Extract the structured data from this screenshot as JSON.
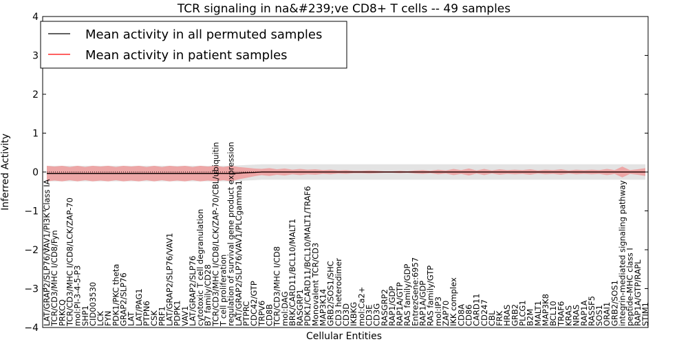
{
  "chart_data": {
    "type": "line",
    "title": "TCR signaling in na&#239;ve CD8+ T cells -- 49 samples",
    "xlabel": "Cellular Entities",
    "ylabel": "Inferred Activity",
    "ylim": [
      -4,
      4
    ],
    "yticks": [
      "4",
      "3",
      "2",
      "1",
      "0",
      "−1",
      "−2",
      "−3",
      "−4"
    ],
    "legend_position": "top-left",
    "categories": [
      "LAT/GRAP2/SLP76/VAV1/PI3K Class IA",
      "TCR/CD3/MHC I/CD8/Fyn",
      "PRKCQ",
      "TCR/CD3/MHC I/CD8/LCK/ZAP-70",
      "mol:PI-3-4-5-P3",
      "SHP1",
      "CID003530",
      "LCK",
      "FYN",
      "PDK1/PKC theta",
      "GRAP2/SLP76",
      "LAT",
      "LAT/PAG1",
      "PTPN6",
      "CSK",
      "PRF1",
      "LAT/GRAP2/SLP76/VAV1",
      "PDPK1",
      "VAV1",
      "LAT/GRAP2/SLP76",
      "cytotoxic T cell degranulation",
      "B7 family/CD28",
      "TCR/CD3/MHC I/CD8/LCK/ZAP-70/CBL/ubiquitin",
      "T cell proliferation",
      "regulation of survival gene product expression",
      "LAT/GRAP2/SLP76/VAV1/PLCgamma1",
      "PTPRC",
      "CDC42/GTP",
      "TRPV6",
      "CD8B",
      "TCR/CD3/MHC I/CD8",
      "mol:DAG",
      "BRK/CARD11/BCL10/MALT1",
      "RASGRP1",
      "PDK1/CARD11/BCL10/MALT1/TRAF6",
      "Monovalent TCR/CD3",
      "MAP3K14",
      "GRB2/SOS1/SHC",
      "CD3 heterodimer",
      "CD3D",
      "IKBKG",
      "mol:Ca2+",
      "CD3E",
      "CD3G",
      "RASGRP2",
      "RAP1/GDP",
      "RAP1A/GTP",
      "RAS family/GDP",
      "EntrezGene:6957",
      "RAP1A/GDP",
      "RAS family/GTP",
      "mol:IP3",
      "ZAP70",
      "IKK complex",
      "CD8A",
      "CD86",
      "CARD11",
      "CD247",
      "CBL",
      "FRK",
      "HRAS",
      "GRB2",
      "PLCG1",
      "B2M",
      "MALT1",
      "MAP3K8",
      "BCL10",
      "TRAF6",
      "KRAS",
      "NRAS",
      "RAP1A",
      "RASSF5",
      "SOS1",
      "ORAI1",
      "GRB2/SOS1",
      "integrin-mediated signaling pathway",
      "peptide-MHC class I",
      "RAP1A/GTP/RAPL",
      "STIM1"
    ],
    "series": [
      {
        "name": "Mean activity in all permuted samples",
        "color": "#000000",
        "values": [
          -0.04,
          -0.04,
          -0.04,
          -0.04,
          -0.04,
          -0.04,
          -0.04,
          -0.04,
          -0.04,
          -0.04,
          -0.04,
          -0.04,
          -0.04,
          -0.04,
          -0.04,
          -0.04,
          -0.04,
          -0.04,
          -0.04,
          -0.04,
          -0.04,
          -0.04,
          -0.04,
          -0.04,
          -0.04,
          -0.03,
          -0.02,
          -0.01,
          0.0,
          0.0,
          0.0,
          0.0,
          0.0,
          0.0,
          0.0,
          0.0,
          0.0,
          0.0,
          0.0,
          0.0,
          0.0,
          0.0,
          0.0,
          0.0,
          0.0,
          0.0,
          0.0,
          0.0,
          0.0,
          0.0,
          0.0,
          0.0,
          0.0,
          0.0,
          0.0,
          0.0,
          0.0,
          0.0,
          0.0,
          0.0,
          0.0,
          0.0,
          0.0,
          0.0,
          0.0,
          0.0,
          0.0,
          0.0,
          0.0,
          0.0,
          0.0,
          0.0,
          0.0,
          0.0,
          0.0,
          0.0,
          0.0,
          0.0,
          0.0
        ],
        "band": 0.2
      },
      {
        "name": "Mean activity in patient samples",
        "color": "#ff0000",
        "values": [
          -0.04,
          -0.04,
          -0.04,
          -0.04,
          -0.04,
          -0.04,
          -0.04,
          -0.04,
          -0.04,
          -0.04,
          -0.04,
          -0.04,
          -0.04,
          -0.04,
          -0.04,
          -0.04,
          -0.04,
          -0.04,
          -0.04,
          -0.04,
          -0.04,
          -0.04,
          -0.04,
          -0.04,
          -0.04,
          -0.03,
          -0.02,
          -0.01,
          0.0,
          0.0,
          0.0,
          0.0,
          0.0,
          0.0,
          0.0,
          0.0,
          0.0,
          0.0,
          0.0,
          0.0,
          0.0,
          0.0,
          0.0,
          0.0,
          0.0,
          0.0,
          0.0,
          0.0,
          0.0,
          0.0,
          0.0,
          0.0,
          0.0,
          0.0,
          0.0,
          0.0,
          0.0,
          0.0,
          0.0,
          0.0,
          0.0,
          0.0,
          0.0,
          0.0,
          0.0,
          0.0,
          0.0,
          0.0,
          0.0,
          0.0,
          0.0,
          0.0,
          0.0,
          0.0,
          0.0,
          0.0,
          0.0,
          0.0,
          0.0
        ],
        "band": [
          0.2,
          0.18,
          0.2,
          0.17,
          0.2,
          0.17,
          0.2,
          0.18,
          0.2,
          0.17,
          0.2,
          0.18,
          0.2,
          0.17,
          0.2,
          0.17,
          0.2,
          0.18,
          0.2,
          0.17,
          0.2,
          0.18,
          0.2,
          0.17,
          0.2,
          0.16,
          0.13,
          0.1,
          0.08,
          0.1,
          0.07,
          0.09,
          0.06,
          0.08,
          0.06,
          0.07,
          0.05,
          0.06,
          0.04,
          0.05,
          0.03,
          0.03,
          0.04,
          0.03,
          0.02,
          0.02,
          0.03,
          0.02,
          0.04,
          0.05,
          0.03,
          0.06,
          0.04,
          0.08,
          0.05,
          0.09,
          0.04,
          0.08,
          0.04,
          0.07,
          0.05,
          0.06,
          0.05,
          0.07,
          0.04,
          0.06,
          0.05,
          0.07,
          0.04,
          0.06,
          0.05,
          0.06,
          0.05,
          0.08,
          0.05,
          0.14,
          0.05,
          0.07,
          0.1
        ]
      }
    ]
  }
}
